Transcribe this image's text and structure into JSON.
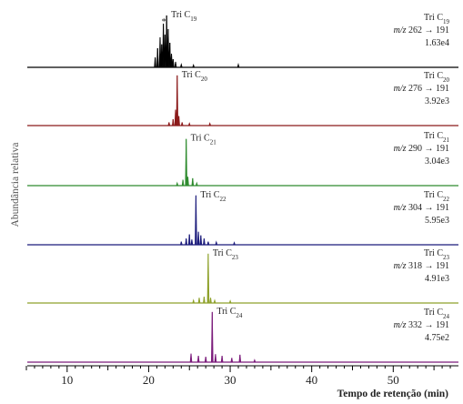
{
  "chart_data": {
    "type": "line",
    "xlabel": "Tempo de retenção (min)",
    "ylabel": "Abundância relativa",
    "xlim": [
      5,
      58
    ],
    "xticks": [
      10,
      20,
      30,
      40,
      50
    ],
    "grid": false,
    "panels": [
      {
        "name": "Tri C19",
        "color": "#000000",
        "peak_label": {
          "base": "Tri C",
          "sub": "19"
        },
        "title": {
          "base": "Tri C",
          "sub": "19"
        },
        "mz": {
          "prefix": "m/z",
          "value": "262 → 191"
        },
        "scale": "1.63e4",
        "star": "*",
        "peaks": [
          {
            "x": 20.8,
            "y": 0.18
          },
          {
            "x": 21.1,
            "y": 0.35
          },
          {
            "x": 21.4,
            "y": 0.55
          },
          {
            "x": 21.6,
            "y": 0.42
          },
          {
            "x": 21.8,
            "y": 0.8
          },
          {
            "x": 22.0,
            "y": 0.6
          },
          {
            "x": 22.2,
            "y": 0.95
          },
          {
            "x": 22.4,
            "y": 0.7
          },
          {
            "x": 22.6,
            "y": 0.45
          },
          {
            "x": 22.8,
            "y": 0.25
          },
          {
            "x": 23.0,
            "y": 0.15
          },
          {
            "x": 23.3,
            "y": 0.1
          },
          {
            "x": 24.0,
            "y": 0.05
          },
          {
            "x": 25.5,
            "y": 0.04
          },
          {
            "x": 31.0,
            "y": 0.05
          }
        ]
      },
      {
        "name": "Tri C20",
        "color": "#8b1a1a",
        "peak_label": {
          "base": "Tri C",
          "sub": "20"
        },
        "title": {
          "base": "Tri C",
          "sub": "20"
        },
        "mz": {
          "prefix": "m/z",
          "value": "276 → 191"
        },
        "scale": "3.92e3",
        "peaks": [
          {
            "x": 22.5,
            "y": 0.06
          },
          {
            "x": 23.0,
            "y": 0.12
          },
          {
            "x": 23.3,
            "y": 0.3
          },
          {
            "x": 23.5,
            "y": 0.95
          },
          {
            "x": 23.7,
            "y": 0.18
          },
          {
            "x": 24.1,
            "y": 0.06
          },
          {
            "x": 25.0,
            "y": 0.04
          },
          {
            "x": 27.5,
            "y": 0.04
          }
        ]
      },
      {
        "name": "Tri C21",
        "color": "#2e8b2e",
        "peak_label": {
          "base": "Tri C",
          "sub": "21"
        },
        "title": {
          "base": "Tri C",
          "sub": "21"
        },
        "mz": {
          "prefix": "m/z",
          "value": "290 → 191"
        },
        "scale": "3.04e3",
        "peaks": [
          {
            "x": 23.5,
            "y": 0.05
          },
          {
            "x": 24.2,
            "y": 0.12
          },
          {
            "x": 24.6,
            "y": 0.95
          },
          {
            "x": 24.8,
            "y": 0.18
          },
          {
            "x": 25.4,
            "y": 0.15
          },
          {
            "x": 25.9,
            "y": 0.05
          }
        ]
      },
      {
        "name": "Tri C22",
        "color": "#1a1a7a",
        "peak_label": {
          "base": "Tri C",
          "sub": "22"
        },
        "title": {
          "base": "Tri C",
          "sub": "22"
        },
        "mz": {
          "prefix": "m/z",
          "value": "304 → 191"
        },
        "scale": "5.95e3",
        "peaks": [
          {
            "x": 24.0,
            "y": 0.06
          },
          {
            "x": 24.6,
            "y": 0.12
          },
          {
            "x": 25.0,
            "y": 0.2
          },
          {
            "x": 25.3,
            "y": 0.1
          },
          {
            "x": 25.8,
            "y": 0.95
          },
          {
            "x": 26.1,
            "y": 0.25
          },
          {
            "x": 26.4,
            "y": 0.18
          },
          {
            "x": 26.8,
            "y": 0.12
          },
          {
            "x": 27.3,
            "y": 0.06
          },
          {
            "x": 28.3,
            "y": 0.05
          },
          {
            "x": 30.5,
            "y": 0.04
          }
        ]
      },
      {
        "name": "Tri C23",
        "color": "#8ea12a",
        "peak_label": {
          "base": "Tri C",
          "sub": "23"
        },
        "title": {
          "base": "Tri C",
          "sub": "23"
        },
        "mz": {
          "prefix": "m/z",
          "value": "318 → 191"
        },
        "scale": "4.91e3",
        "peaks": [
          {
            "x": 25.5,
            "y": 0.05
          },
          {
            "x": 26.2,
            "y": 0.1
          },
          {
            "x": 26.8,
            "y": 0.12
          },
          {
            "x": 27.3,
            "y": 0.95
          },
          {
            "x": 27.6,
            "y": 0.1
          },
          {
            "x": 28.1,
            "y": 0.05
          },
          {
            "x": 30.0,
            "y": 0.04
          }
        ]
      },
      {
        "name": "Tri C24",
        "color": "#7a1a7a",
        "peak_label": {
          "base": "Tri C",
          "sub": "24"
        },
        "title": {
          "base": "Tri C",
          "sub": "24"
        },
        "mz": {
          "prefix": "m/z",
          "value": "332 → 191"
        },
        "scale": "4.75e2",
        "peaks": [
          {
            "x": 25.2,
            "y": 0.16
          },
          {
            "x": 26.1,
            "y": 0.12
          },
          {
            "x": 27.0,
            "y": 0.1
          },
          {
            "x": 27.8,
            "y": 0.95
          },
          {
            "x": 28.2,
            "y": 0.15
          },
          {
            "x": 29.0,
            "y": 0.12
          },
          {
            "x": 30.2,
            "y": 0.08
          },
          {
            "x": 31.2,
            "y": 0.14
          },
          {
            "x": 33.0,
            "y": 0.04
          }
        ]
      }
    ]
  }
}
